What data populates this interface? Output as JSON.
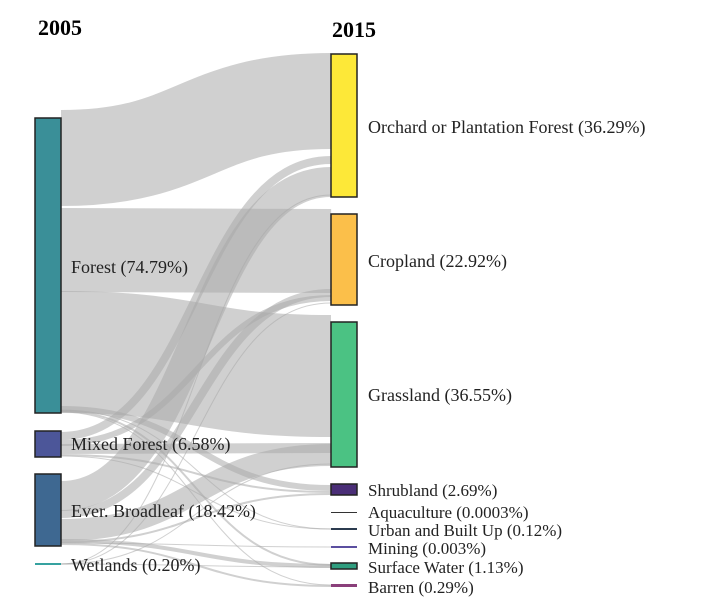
{
  "headers": {
    "left": "2005",
    "right": "2015"
  },
  "sources": [
    {
      "id": "forest",
      "label": "Forest (74.79%)",
      "color": "#3a8f98"
    },
    {
      "id": "mixed",
      "label": "Mixed Forest (6.58%)",
      "color": "#4c5699"
    },
    {
      "id": "broadleaf",
      "label": "Ever. Broadleaf (18.42%)",
      "color": "#3e6891"
    },
    {
      "id": "wetlands",
      "label": "Wetlands (0.20%)",
      "color": "#36a2a0"
    }
  ],
  "targets": [
    {
      "id": "orchard",
      "label": "Orchard or Plantation Forest (36.29%)",
      "color": "#fde838"
    },
    {
      "id": "cropland",
      "label": "Cropland (22.92%)",
      "color": "#fbbf4a"
    },
    {
      "id": "grassland",
      "label": "Grassland (36.55%)",
      "color": "#4bc283"
    },
    {
      "id": "shrubland",
      "label": "Shrubland (2.69%)",
      "color": "#4a2e77"
    },
    {
      "id": "aquaculture",
      "label": "Aquaculture (0.0003%)",
      "color": "#333333"
    },
    {
      "id": "urban",
      "label": "Urban and Built Up (0.12%)",
      "color": "#2b3b4f"
    },
    {
      "id": "mining",
      "label": "Mining (0.003%)",
      "color": "#5b4fa0"
    },
    {
      "id": "surface",
      "label": "Surface Water (1.13%)",
      "color": "#2f9e7f"
    },
    {
      "id": "barren",
      "label": "Barren (0.29%)",
      "color": "#8a3f7a"
    }
  ]
}
